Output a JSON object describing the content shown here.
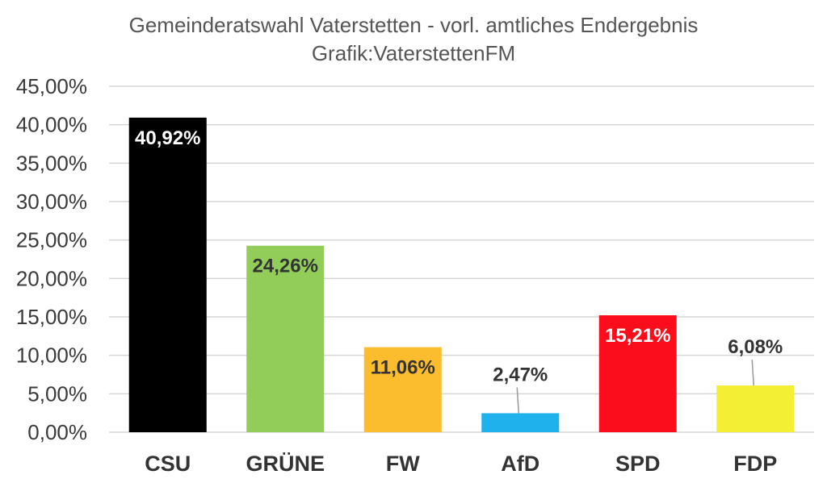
{
  "chart_data": {
    "type": "bar",
    "title": "Gemeinderatswahl Vaterstetten - vorl. amtliches Endergebnis",
    "subtitle": "Grafik:VaterstettenFM",
    "categories": [
      "CSU",
      "GRÜNE",
      "FW",
      "AfD",
      "SPD",
      "FDP"
    ],
    "values": [
      40.92,
      24.26,
      11.06,
      2.47,
      15.21,
      6.08
    ],
    "value_labels": [
      "40,92%",
      "24,26%",
      "11,06%",
      "2,47%",
      "15,21%",
      "6,08%"
    ],
    "bar_colors": [
      "#000000",
      "#92cd5a",
      "#fbbd2d",
      "#1fb1ec",
      "#fb0d1b",
      "#f2ef34"
    ],
    "label_colors": [
      "#ffffff",
      "#333333",
      "#333333",
      "#333333",
      "#ffffff",
      "#333333"
    ],
    "ylim": [
      0,
      45
    ],
    "yticks": [
      0,
      5,
      10,
      15,
      20,
      25,
      30,
      35,
      40,
      45
    ],
    "ytick_labels": [
      "0,00%",
      "5,00%",
      "10,00%",
      "15,00%",
      "20,00%",
      "25,00%",
      "30,00%",
      "35,00%",
      "40,00%",
      "45,00%"
    ],
    "grid": true,
    "xlabel": "",
    "ylabel": ""
  }
}
